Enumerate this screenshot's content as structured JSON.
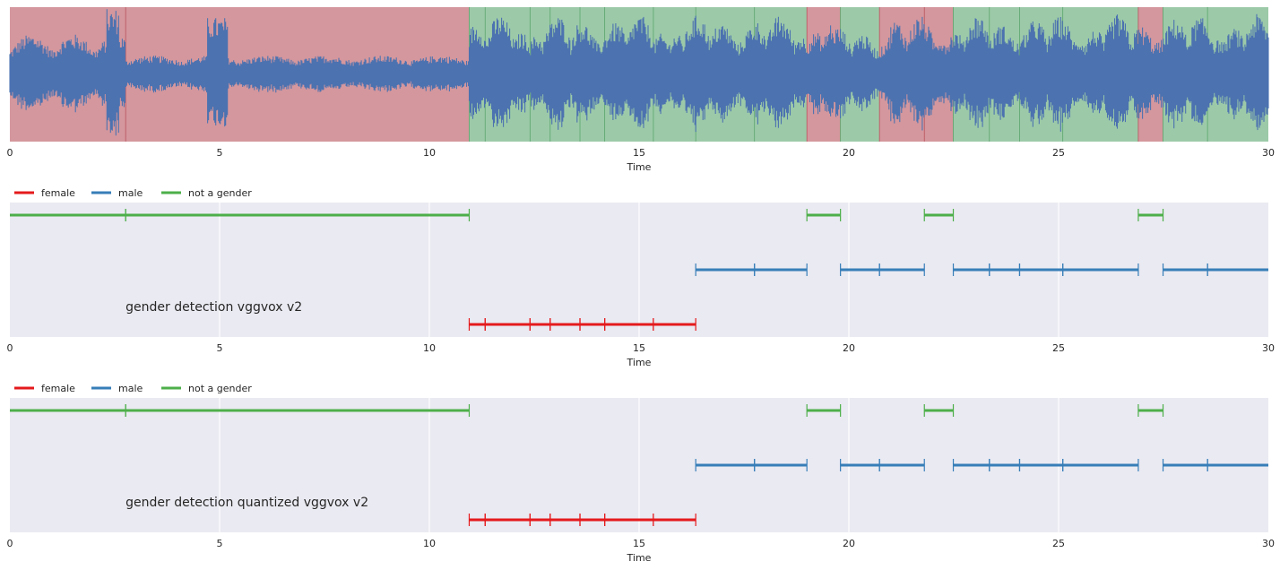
{
  "colors": {
    "female": "#e41a1c",
    "male": "#377eb8",
    "not_a_gender": "#4daf4a",
    "waveform": "#4c72b0",
    "red_region": "#d4979d",
    "green_region": "#9ccaa8",
    "plot_bg": "#eaeaf2",
    "grid": "#ffffff"
  },
  "chart_data": [
    {
      "type": "line",
      "title": "",
      "xlabel": "Time",
      "ylabel": "",
      "xlim": [
        0,
        30
      ],
      "xticks": [
        "0",
        "5",
        "10",
        "15",
        "20",
        "25",
        "30"
      ],
      "description_of_series": "audio waveform with labelled background regions",
      "regions": [
        {
          "start": 0,
          "end": 10.95,
          "color": "red",
          "boundaries": [
            2.76
          ]
        },
        {
          "start": 10.95,
          "end": 19.0,
          "color": "green",
          "boundaries": [
            11.33,
            12.4,
            12.88,
            13.59,
            14.18,
            15.34,
            16.35,
            17.75
          ]
        },
        {
          "start": 19.0,
          "end": 19.8,
          "color": "red",
          "boundaries": []
        },
        {
          "start": 19.8,
          "end": 20.73,
          "color": "green",
          "boundaries": []
        },
        {
          "start": 20.73,
          "end": 22.49,
          "color": "red",
          "boundaries": [
            21.8
          ]
        },
        {
          "start": 22.49,
          "end": 26.9,
          "color": "green",
          "boundaries": [
            23.35,
            24.07,
            25.1
          ]
        },
        {
          "start": 26.9,
          "end": 27.49,
          "color": "red",
          "boundaries": []
        },
        {
          "start": 27.49,
          "end": 30,
          "color": "green",
          "boundaries": [
            28.55
          ]
        }
      ]
    },
    {
      "type": "segments",
      "annotation": "gender detection vggvox v2",
      "xlabel": "Time",
      "xlim": [
        0,
        30
      ],
      "xticks": [
        "0",
        "5",
        "10",
        "15",
        "20",
        "25",
        "30"
      ],
      "legend": [
        "female",
        "male",
        "not a gender"
      ],
      "series": [
        {
          "name": "not a gender",
          "segments": [
            [
              0,
              2.76
            ],
            [
              2.76,
              10.95
            ],
            [
              19.0,
              19.8
            ],
            [
              21.8,
              22.49
            ],
            [
              26.9,
              27.49
            ]
          ]
        },
        {
          "name": "male",
          "segments": [
            [
              16.35,
              17.75
            ],
            [
              17.75,
              19.0
            ],
            [
              19.8,
              20.73
            ],
            [
              20.73,
              21.8
            ],
            [
              22.49,
              23.35
            ],
            [
              23.35,
              24.07
            ],
            [
              24.07,
              25.1
            ],
            [
              25.1,
              26.9
            ],
            [
              27.49,
              28.55
            ],
            [
              28.55,
              30
            ]
          ]
        },
        {
          "name": "female",
          "segments": [
            [
              10.95,
              11.33
            ],
            [
              11.33,
              12.4
            ],
            [
              12.4,
              12.88
            ],
            [
              12.88,
              13.59
            ],
            [
              13.59,
              14.18
            ],
            [
              14.18,
              15.34
            ],
            [
              15.34,
              16.35
            ]
          ]
        }
      ]
    },
    {
      "type": "segments",
      "annotation": "gender detection quantized vggvox v2",
      "xlabel": "Time",
      "xlim": [
        0,
        30
      ],
      "xticks": [
        "0",
        "5",
        "10",
        "15",
        "20",
        "25",
        "30"
      ],
      "legend": [
        "female",
        "male",
        "not a gender"
      ],
      "series": [
        {
          "name": "not a gender",
          "segments": [
            [
              0,
              2.76
            ],
            [
              2.76,
              10.95
            ],
            [
              19.0,
              19.8
            ],
            [
              21.8,
              22.49
            ],
            [
              26.9,
              27.49
            ]
          ]
        },
        {
          "name": "male",
          "segments": [
            [
              16.35,
              17.75
            ],
            [
              17.75,
              19.0
            ],
            [
              19.8,
              20.73
            ],
            [
              20.73,
              21.8
            ],
            [
              22.49,
              23.35
            ],
            [
              23.35,
              24.07
            ],
            [
              24.07,
              25.1
            ],
            [
              25.1,
              26.9
            ],
            [
              27.49,
              28.55
            ],
            [
              28.55,
              30
            ]
          ]
        },
        {
          "name": "female",
          "segments": [
            [
              10.95,
              11.33
            ],
            [
              11.33,
              12.4
            ],
            [
              12.4,
              12.88
            ],
            [
              12.88,
              13.59
            ],
            [
              13.59,
              14.18
            ],
            [
              14.18,
              15.34
            ],
            [
              15.34,
              16.35
            ]
          ]
        }
      ]
    }
  ]
}
